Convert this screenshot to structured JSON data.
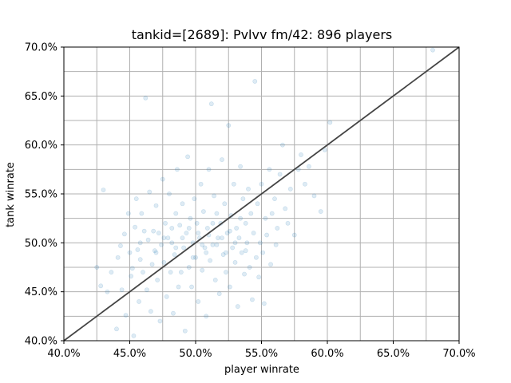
{
  "chart_data": {
    "type": "scatter",
    "title": "tankid=[2689]: Pvlvv fm/42: 896 players",
    "xlabel": "player winrate",
    "ylabel": "tank winrate",
    "xlim": [
      0.4,
      0.7
    ],
    "ylim": [
      0.4,
      0.7
    ],
    "x_ticks": [
      0.4,
      0.45,
      0.5,
      0.55,
      0.6,
      0.65,
      0.7
    ],
    "x_tick_labels": [
      "40.0%",
      "45.0%",
      "50.0%",
      "55.0%",
      "60.0%",
      "65.0%",
      "70.0%"
    ],
    "y_ticks": [
      0.4,
      0.45,
      0.5,
      0.55,
      0.6,
      0.65,
      0.7
    ],
    "y_tick_labels": [
      "40.0%",
      "45.0%",
      "50.0%",
      "55.0%",
      "60.0%",
      "65.0%",
      "70.0%"
    ],
    "grid": true,
    "grid_minor_step": 0.025,
    "point_color": "#1f77b4",
    "point_opacity": 0.15,
    "reference_line": {
      "from": [
        0.4,
        0.4
      ],
      "to": [
        0.7,
        0.7
      ],
      "color": "#444444"
    },
    "points": [
      [
        0.425,
        0.475
      ],
      [
        0.428,
        0.456
      ],
      [
        0.43,
        0.554
      ],
      [
        0.433,
        0.45
      ],
      [
        0.436,
        0.47
      ],
      [
        0.44,
        0.412
      ],
      [
        0.441,
        0.485
      ],
      [
        0.443,
        0.497
      ],
      [
        0.444,
        0.452
      ],
      [
        0.446,
        0.509
      ],
      [
        0.447,
        0.426
      ],
      [
        0.449,
        0.53
      ],
      [
        0.45,
        0.49
      ],
      [
        0.451,
        0.466
      ],
      [
        0.452,
        0.474
      ],
      [
        0.453,
        0.405
      ],
      [
        0.454,
        0.516
      ],
      [
        0.455,
        0.545
      ],
      [
        0.456,
        0.493
      ],
      [
        0.457,
        0.44
      ],
      [
        0.458,
        0.483
      ],
      [
        0.459,
        0.53
      ],
      [
        0.46,
        0.47
      ],
      [
        0.461,
        0.512
      ],
      [
        0.462,
        0.648
      ],
      [
        0.463,
        0.452
      ],
      [
        0.464,
        0.503
      ],
      [
        0.465,
        0.552
      ],
      [
        0.466,
        0.43
      ],
      [
        0.467,
        0.478
      ],
      [
        0.468,
        0.512
      ],
      [
        0.469,
        0.492
      ],
      [
        0.47,
        0.538
      ],
      [
        0.471,
        0.462
      ],
      [
        0.472,
        0.51
      ],
      [
        0.473,
        0.42
      ],
      [
        0.474,
        0.498
      ],
      [
        0.475,
        0.565
      ],
      [
        0.476,
        0.48
      ],
      [
        0.477,
        0.52
      ],
      [
        0.478,
        0.445
      ],
      [
        0.479,
        0.505
      ],
      [
        0.48,
        0.55
      ],
      [
        0.481,
        0.47
      ],
      [
        0.482,
        0.5
      ],
      [
        0.483,
        0.428
      ],
      [
        0.484,
        0.488
      ],
      [
        0.485,
        0.53
      ],
      [
        0.486,
        0.575
      ],
      [
        0.487,
        0.455
      ],
      [
        0.488,
        0.518
      ],
      [
        0.489,
        0.47
      ],
      [
        0.49,
        0.54
      ],
      [
        0.491,
        0.495
      ],
      [
        0.492,
        0.41
      ],
      [
        0.493,
        0.51
      ],
      [
        0.494,
        0.588
      ],
      [
        0.495,
        0.475
      ],
      [
        0.496,
        0.525
      ],
      [
        0.497,
        0.455
      ],
      [
        0.498,
        0.5
      ],
      [
        0.499,
        0.545
      ],
      [
        0.5,
        0.485
      ],
      [
        0.501,
        0.52
      ],
      [
        0.502,
        0.44
      ],
      [
        0.503,
        0.505
      ],
      [
        0.504,
        0.56
      ],
      [
        0.505,
        0.472
      ],
      [
        0.506,
        0.532
      ],
      [
        0.507,
        0.495
      ],
      [
        0.508,
        0.425
      ],
      [
        0.509,
        0.515
      ],
      [
        0.51,
        0.575
      ],
      [
        0.511,
        0.482
      ],
      [
        0.512,
        0.642
      ],
      [
        0.513,
        0.498
      ],
      [
        0.514,
        0.548
      ],
      [
        0.515,
        0.462
      ],
      [
        0.516,
        0.53
      ],
      [
        0.517,
        0.505
      ],
      [
        0.518,
        0.448
      ],
      [
        0.519,
        0.52
      ],
      [
        0.52,
        0.585
      ],
      [
        0.521,
        0.488
      ],
      [
        0.522,
        0.54
      ],
      [
        0.523,
        0.47
      ],
      [
        0.524,
        0.51
      ],
      [
        0.525,
        0.62
      ],
      [
        0.526,
        0.455
      ],
      [
        0.527,
        0.528
      ],
      [
        0.528,
        0.495
      ],
      [
        0.529,
        0.56
      ],
      [
        0.53,
        0.48
      ],
      [
        0.531,
        0.515
      ],
      [
        0.532,
        0.435
      ],
      [
        0.533,
        0.505
      ],
      [
        0.534,
        0.578
      ],
      [
        0.535,
        0.49
      ],
      [
        0.536,
        0.545
      ],
      [
        0.537,
        0.468
      ],
      [
        0.538,
        0.52
      ],
      [
        0.539,
        0.5
      ],
      [
        0.54,
        0.555
      ],
      [
        0.541,
        0.475
      ],
      [
        0.542,
        0.53
      ],
      [
        0.543,
        0.442
      ],
      [
        0.544,
        0.51
      ],
      [
        0.545,
        0.665
      ],
      [
        0.546,
        0.485
      ],
      [
        0.547,
        0.54
      ],
      [
        0.548,
        0.465
      ],
      [
        0.549,
        0.5
      ],
      [
        0.55,
        0.56
      ],
      [
        0.551,
        0.49
      ],
      [
        0.552,
        0.438
      ],
      [
        0.553,
        0.525
      ],
      [
        0.554,
        0.508
      ],
      [
        0.556,
        0.575
      ],
      [
        0.557,
        0.478
      ],
      [
        0.558,
        0.53
      ],
      [
        0.56,
        0.545
      ],
      [
        0.561,
        0.498
      ],
      [
        0.562,
        0.515
      ],
      [
        0.564,
        0.57
      ],
      [
        0.566,
        0.6
      ],
      [
        0.568,
        0.535
      ],
      [
        0.57,
        0.52
      ],
      [
        0.572,
        0.555
      ],
      [
        0.575,
        0.508
      ],
      [
        0.578,
        0.575
      ],
      [
        0.58,
        0.59
      ],
      [
        0.583,
        0.56
      ],
      [
        0.586,
        0.578
      ],
      [
        0.59,
        0.548
      ],
      [
        0.595,
        0.532
      ],
      [
        0.598,
        0.595
      ],
      [
        0.602,
        0.623
      ],
      [
        0.68,
        0.697
      ],
      [
        0.458,
        0.5
      ],
      [
        0.47,
        0.49
      ],
      [
        0.476,
        0.505
      ],
      [
        0.482,
        0.515
      ],
      [
        0.485,
        0.495
      ],
      [
        0.49,
        0.505
      ],
      [
        0.495,
        0.515
      ],
      [
        0.498,
        0.485
      ],
      [
        0.502,
        0.51
      ],
      [
        0.505,
        0.498
      ],
      [
        0.508,
        0.49
      ],
      [
        0.51,
        0.508
      ],
      [
        0.513,
        0.52
      ],
      [
        0.516,
        0.498
      ],
      [
        0.52,
        0.505
      ],
      [
        0.523,
        0.49
      ],
      [
        0.526,
        0.512
      ],
      [
        0.53,
        0.5
      ],
      [
        0.534,
        0.525
      ],
      [
        0.538,
        0.492
      ]
    ]
  }
}
